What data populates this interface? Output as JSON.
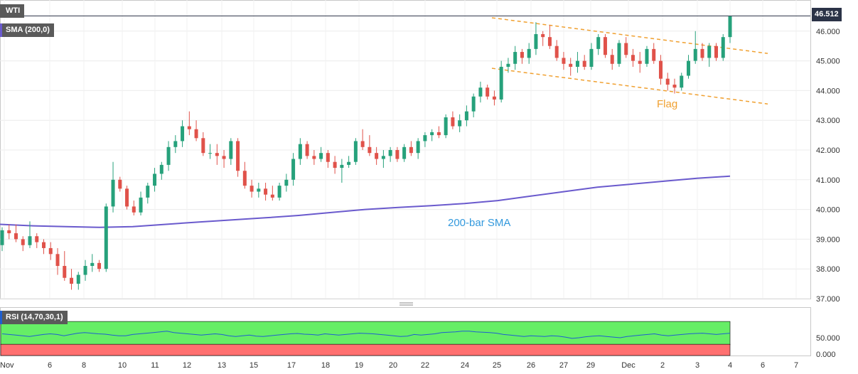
{
  "labels": {
    "symbol": "WTI",
    "sma_legend": "SMA (200,0)",
    "rsi_legend": "RSI (14,70,30,1)",
    "last_price": "46.512",
    "flag_annotation": "Flag",
    "sma_annotation": "200-bar SMA"
  },
  "colors": {
    "up": "#26a17b",
    "down": "#e0524a",
    "sma": "#6a5acd",
    "flag": "#f0a030",
    "rsi": "#1f5fd0",
    "rsi_overbought": "#66ee66",
    "rsi_oversold": "#ff7070",
    "sma_text": "#3399dd"
  },
  "chart_data": [
    {
      "type": "candlestick",
      "title": "WTI",
      "x_tick_labels": [
        "Nov",
        "6",
        "8",
        "10",
        "11",
        "12",
        "13",
        "15",
        "17",
        "18",
        "19",
        "20",
        "22",
        "24",
        "25",
        "26",
        "27",
        "29",
        "Dec",
        "2",
        "3",
        "4",
        "6",
        "7"
      ],
      "ylim": [
        37.0,
        47.0
      ],
      "y_ticks": [
        "46.000",
        "45.000",
        "44.000",
        "43.000",
        "42.000",
        "41.000",
        "40.000",
        "39.000",
        "38.000",
        "37.000"
      ],
      "last_price": 46.512,
      "candles": [
        [
          38.8,
          39.4,
          38.6,
          39.3
        ],
        [
          39.3,
          39.5,
          39.0,
          39.2
        ],
        [
          39.2,
          39.5,
          38.9,
          39.0
        ],
        [
          39.0,
          39.1,
          38.6,
          38.8
        ],
        [
          38.8,
          39.6,
          38.7,
          39.1
        ],
        [
          39.1,
          39.2,
          38.7,
          38.9
        ],
        [
          38.9,
          39.0,
          38.5,
          38.7
        ],
        [
          38.7,
          38.9,
          38.3,
          38.5
        ],
        [
          38.5,
          38.7,
          37.8,
          38.1
        ],
        [
          38.1,
          38.6,
          37.6,
          37.7
        ],
        [
          37.7,
          38.0,
          37.3,
          37.5
        ],
        [
          37.5,
          37.9,
          37.3,
          37.8
        ],
        [
          37.8,
          38.3,
          37.6,
          38.1
        ],
        [
          38.1,
          38.5,
          37.9,
          38.2
        ],
        [
          38.2,
          38.3,
          37.9,
          38.0
        ],
        [
          38.0,
          40.2,
          37.9,
          40.1
        ],
        [
          40.1,
          41.6,
          39.9,
          41.0
        ],
        [
          41.0,
          41.1,
          40.6,
          40.7
        ],
        [
          40.7,
          40.8,
          40.0,
          40.1
        ],
        [
          40.1,
          40.3,
          39.8,
          39.9
        ],
        [
          39.9,
          40.6,
          39.8,
          40.4
        ],
        [
          40.4,
          40.9,
          40.2,
          40.8
        ],
        [
          40.8,
          41.4,
          40.6,
          41.2
        ],
        [
          41.2,
          41.6,
          41.0,
          41.5
        ],
        [
          41.5,
          42.3,
          41.3,
          42.1
        ],
        [
          42.1,
          42.5,
          41.9,
          42.3
        ],
        [
          42.3,
          43.0,
          42.1,
          42.8
        ],
        [
          42.8,
          43.3,
          42.5,
          42.7
        ],
        [
          42.7,
          43.0,
          42.3,
          42.4
        ],
        [
          42.4,
          42.6,
          41.8,
          41.9
        ],
        [
          41.9,
          42.2,
          41.7,
          41.9
        ],
        [
          41.9,
          42.2,
          41.5,
          41.8
        ],
        [
          41.8,
          42.0,
          41.4,
          41.7
        ],
        [
          41.7,
          42.4,
          41.5,
          42.3
        ],
        [
          42.3,
          42.4,
          41.1,
          41.3
        ],
        [
          41.3,
          41.6,
          40.7,
          40.8
        ],
        [
          40.8,
          41.0,
          40.4,
          40.6
        ],
        [
          40.6,
          40.9,
          40.4,
          40.7
        ],
        [
          40.7,
          40.9,
          40.3,
          40.5
        ],
        [
          40.5,
          40.8,
          40.3,
          40.4
        ],
        [
          40.4,
          40.9,
          40.3,
          40.8
        ],
        [
          40.8,
          41.2,
          40.6,
          41.0
        ],
        [
          41.0,
          41.9,
          40.8,
          41.7
        ],
        [
          41.7,
          42.4,
          41.5,
          42.2
        ],
        [
          42.2,
          42.3,
          41.7,
          41.8
        ],
        [
          41.8,
          42.0,
          41.5,
          41.7
        ],
        [
          41.7,
          42.1,
          41.6,
          41.9
        ],
        [
          41.9,
          42.0,
          41.4,
          41.6
        ],
        [
          41.6,
          41.8,
          41.2,
          41.4
        ],
        [
          41.4,
          41.7,
          40.9,
          41.5
        ],
        [
          41.5,
          41.8,
          41.4,
          41.6
        ],
        [
          41.6,
          42.4,
          41.5,
          42.3
        ],
        [
          42.3,
          42.7,
          42.0,
          42.1
        ],
        [
          42.1,
          42.5,
          41.8,
          41.9
        ],
        [
          41.9,
          42.1,
          41.5,
          41.7
        ],
        [
          41.7,
          42.0,
          41.4,
          41.8
        ],
        [
          41.8,
          42.1,
          41.6,
          42.0
        ],
        [
          42.0,
          42.1,
          41.6,
          41.7
        ],
        [
          41.7,
          42.2,
          41.6,
          42.1
        ],
        [
          42.1,
          42.3,
          41.8,
          41.9
        ],
        [
          41.9,
          42.4,
          41.7,
          42.3
        ],
        [
          42.3,
          42.6,
          42.1,
          42.5
        ],
        [
          42.5,
          42.7,
          42.3,
          42.6
        ],
        [
          42.6,
          42.8,
          42.4,
          42.5
        ],
        [
          42.5,
          43.2,
          42.4,
          43.1
        ],
        [
          43.1,
          43.3,
          42.7,
          42.8
        ],
        [
          42.8,
          43.2,
          42.6,
          43.0
        ],
        [
          43.0,
          43.5,
          42.8,
          43.3
        ],
        [
          43.3,
          43.9,
          43.1,
          43.8
        ],
        [
          43.8,
          44.3,
          43.6,
          44.1
        ],
        [
          44.1,
          44.2,
          43.7,
          43.8
        ],
        [
          43.8,
          44.0,
          43.5,
          43.7
        ],
        [
          43.7,
          45.0,
          43.6,
          44.8
        ],
        [
          44.8,
          45.1,
          44.6,
          44.9
        ],
        [
          44.9,
          45.5,
          44.7,
          45.3
        ],
        [
          45.3,
          45.4,
          44.9,
          45.1
        ],
        [
          45.1,
          45.6,
          44.9,
          45.4
        ],
        [
          45.4,
          46.3,
          45.2,
          45.9
        ],
        [
          45.9,
          46.0,
          45.5,
          45.8
        ],
        [
          45.8,
          46.2,
          45.4,
          45.5
        ],
        [
          45.5,
          45.7,
          45.0,
          45.1
        ],
        [
          45.1,
          45.3,
          44.7,
          44.9
        ],
        [
          44.9,
          45.1,
          44.5,
          44.8
        ],
        [
          44.8,
          45.3,
          44.6,
          45.0
        ],
        [
          45.0,
          45.2,
          44.7,
          44.8
        ],
        [
          44.8,
          45.6,
          44.7,
          45.4
        ],
        [
          45.4,
          45.9,
          45.2,
          45.8
        ],
        [
          45.8,
          45.9,
          45.1,
          45.2
        ],
        [
          45.2,
          45.4,
          44.7,
          44.9
        ],
        [
          44.9,
          45.7,
          44.8,
          45.6
        ],
        [
          45.6,
          45.8,
          45.1,
          45.2
        ],
        [
          45.2,
          45.4,
          44.8,
          45.0
        ],
        [
          45.0,
          45.3,
          44.6,
          44.9
        ],
        [
          44.9,
          45.5,
          44.8,
          45.4
        ],
        [
          45.4,
          45.6,
          44.9,
          45.0
        ],
        [
          45.0,
          45.2,
          44.2,
          44.4
        ],
        [
          44.4,
          44.6,
          44.0,
          44.2
        ],
        [
          44.2,
          44.4,
          43.9,
          44.1
        ],
        [
          44.1,
          44.6,
          44.0,
          44.5
        ],
        [
          44.5,
          45.2,
          44.4,
          45.0
        ],
        [
          45.0,
          46.0,
          44.9,
          45.4
        ],
        [
          45.4,
          45.6,
          45.0,
          45.1
        ],
        [
          45.1,
          45.6,
          44.8,
          45.5
        ],
        [
          45.5,
          45.6,
          45.0,
          45.1
        ],
        [
          45.1,
          45.9,
          45.0,
          45.8
        ],
        [
          45.8,
          46.5,
          45.6,
          46.5
        ]
      ],
      "sma": [
        39.5,
        39.45,
        39.42,
        39.4,
        39.42,
        39.5,
        39.58,
        39.65,
        39.72,
        39.8,
        39.9,
        40.0,
        40.07,
        40.13,
        40.2,
        40.3,
        40.45,
        40.6,
        40.75,
        40.85,
        40.95,
        41.05,
        41.12
      ]
    },
    {
      "type": "line",
      "title": "RSI (14,70,30,1)",
      "ylim": [
        0,
        100
      ],
      "y_ticks": [
        "50.000",
        "0.000"
      ],
      "overbought": 70,
      "oversold": 30,
      "values": [
        62,
        60,
        58,
        56,
        54,
        57,
        60,
        62,
        60,
        56,
        60,
        64,
        66,
        64,
        62,
        61,
        58,
        56,
        56,
        60,
        62,
        64,
        66,
        68,
        70,
        66,
        64,
        62,
        60,
        58,
        60,
        62,
        60,
        56,
        54,
        56,
        58,
        55,
        54,
        56,
        58,
        60,
        62,
        63,
        61,
        60,
        58,
        62,
        60,
        58,
        60,
        62,
        64,
        63,
        62,
        60,
        58,
        56,
        54,
        55,
        60,
        58,
        60,
        62,
        66,
        67,
        68,
        70,
        70,
        68,
        67,
        66,
        64,
        60,
        58,
        56,
        54,
        56,
        55,
        54,
        56,
        55,
        52,
        48,
        50,
        53,
        55,
        56,
        54,
        52,
        50,
        54,
        56,
        58,
        60,
        62,
        58,
        56,
        58,
        60,
        62,
        63,
        64,
        62,
        60,
        62,
        64
      ]
    }
  ]
}
